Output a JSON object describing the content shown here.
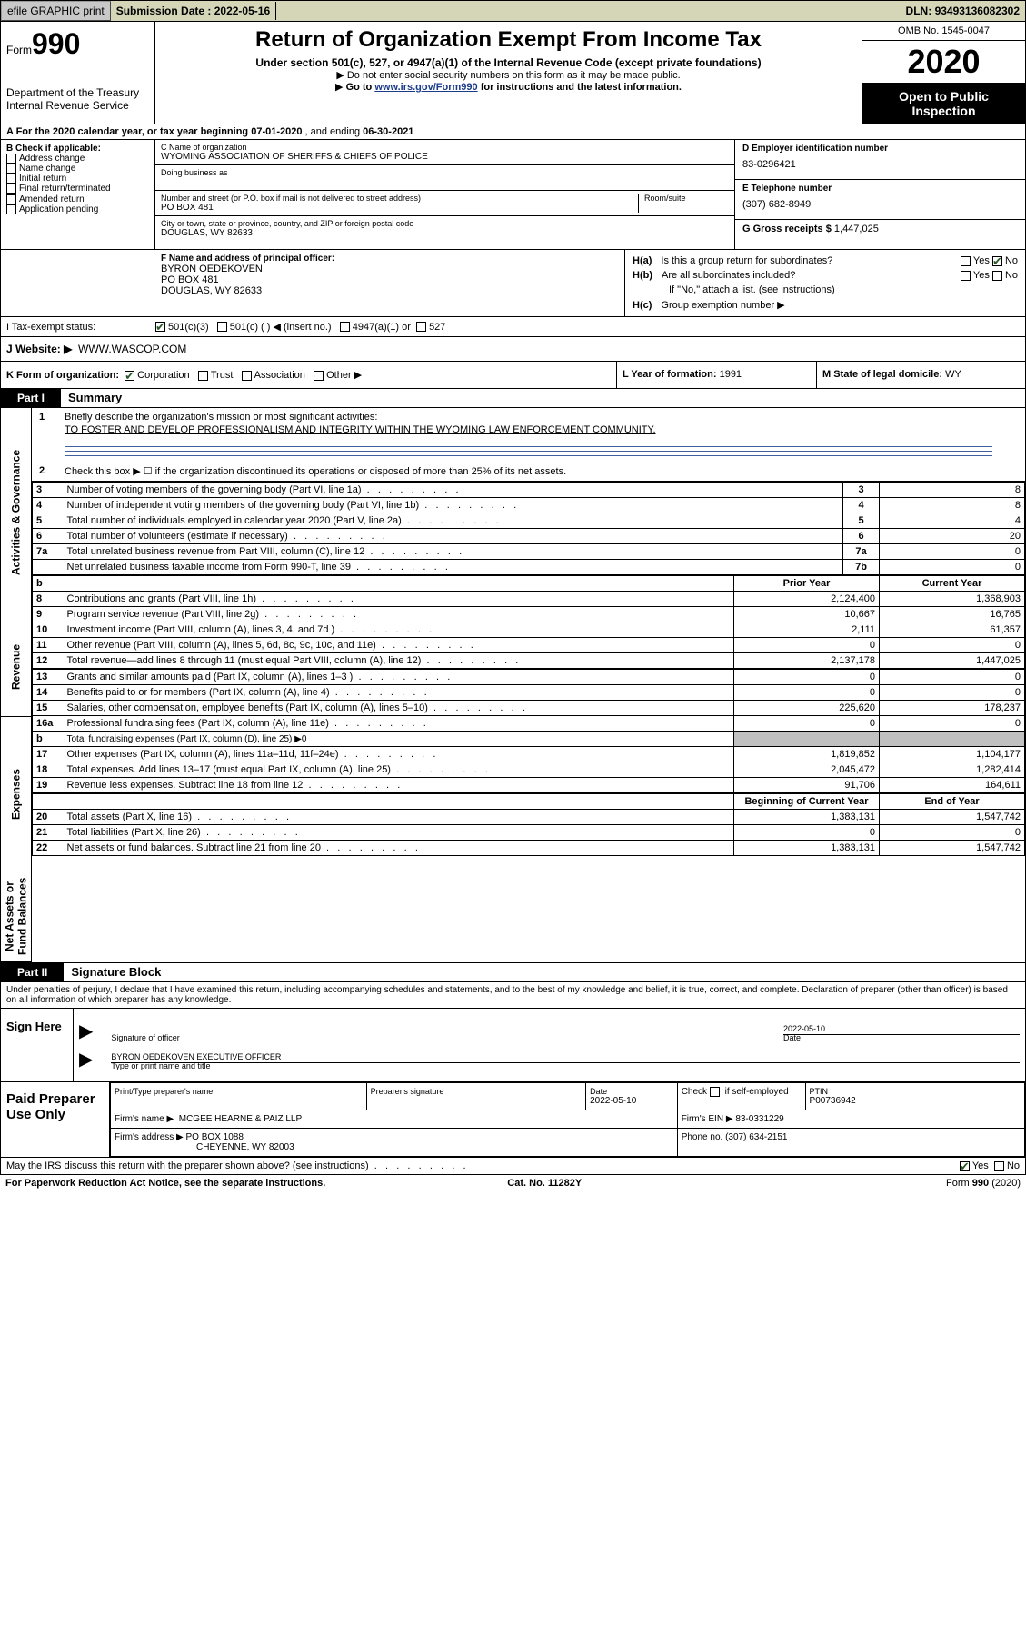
{
  "topbar": {
    "efile": "efile GRAPHIC print",
    "subdate_lbl": "Submission Date :",
    "subdate": "2022-05-16",
    "dln_lbl": "DLN:",
    "dln": "93493136082302"
  },
  "header": {
    "form_word": "Form",
    "form_no": "990",
    "dept1": "Department of the Treasury",
    "dept2": "Internal Revenue Service",
    "title": "Return of Organization Exempt From Income Tax",
    "sub1": "Under section 501(c), 527, or 4947(a)(1) of the Internal Revenue Code (except private foundations)",
    "sub2": "Do not enter social security numbers on this form as it may be made public.",
    "sub3a": "Go to ",
    "sub3link": "www.irs.gov/Form990",
    "sub3b": " for instructions and the latest information.",
    "omb": "OMB No. 1545-0047",
    "year": "2020",
    "opi": "Open to Public Inspection"
  },
  "lineA": {
    "text_a": "A For the 2020 calendar year, or tax year beginning ",
    "begin": "07-01-2020",
    "text_b": " , and ending ",
    "end": "06-30-2021"
  },
  "boxB": {
    "hdr": "B Check if applicable:",
    "o1": "Address change",
    "o2": "Name change",
    "o3": "Initial return",
    "o4": "Final return/terminated",
    "o5": "Amended return",
    "o6": "Application pending"
  },
  "boxC": {
    "name_lbl": "C Name of organization",
    "name": "WYOMING ASSOCIATION OF SHERIFFS & CHIEFS OF POLICE",
    "dba_lbl": "Doing business as",
    "street_lbl": "Number and street (or P.O. box if mail is not delivered to street address)",
    "room_lbl": "Room/suite",
    "street": "PO BOX 481",
    "city_lbl": "City or town, state or province, country, and ZIP or foreign postal code",
    "city": "DOUGLAS, WY  82633"
  },
  "boxD": {
    "lbl": "D Employer identification number",
    "val": "83-0296421"
  },
  "boxE": {
    "lbl": "E Telephone number",
    "val": "(307) 682-8949"
  },
  "boxG": {
    "lbl": "G Gross receipts $",
    "val": "1,447,025"
  },
  "boxF": {
    "lbl": "F Name and address of principal officer:",
    "l1": "BYRON OEDEKOVEN",
    "l2": "PO BOX 481",
    "l3": "DOUGLAS, WY  82633"
  },
  "boxH": {
    "ha": "H(a)",
    "ha_txt": "Is this a group return for subordinates?",
    "hb": "H(b)",
    "hb_txt": "Are all subordinates included?",
    "hb_note": "If \"No,\" attach a list. (see instructions)",
    "hc": "H(c)",
    "hc_txt": "Group exemption number ▶",
    "yes": "Yes",
    "no": "No"
  },
  "taxrow": {
    "lead": "I  Tax-exempt status:",
    "o1": "501(c)(3)",
    "o2": "501(c) (   ) ◀ (insert no.)",
    "o3": "4947(a)(1) or",
    "o4": "527"
  },
  "rowJ": {
    "lbl": "J  Website: ▶",
    "val": "WWW.WASCOP.COM"
  },
  "rowK": {
    "lbl": "K Form of organization:",
    "o1": "Corporation",
    "o2": "Trust",
    "o3": "Association",
    "o4": "Other ▶"
  },
  "rowL": {
    "lbl": "L Year of formation:",
    "val": "1991"
  },
  "rowM": {
    "lbl": "M State of legal domicile:",
    "val": "WY"
  },
  "parts": {
    "p1": "Part I",
    "p1_title": "Summary",
    "p2": "Part II",
    "p2_title": "Signature Block"
  },
  "sidebar": {
    "s1": "Activities & Governance",
    "s2": "Revenue",
    "s3": "Expenses",
    "s4": "Net Assets or Fund Balances"
  },
  "summary": {
    "l1_lbl": "Briefly describe the organization's mission or most significant activities:",
    "l1_val": "TO FOSTER AND DEVELOP PROFESSIONALISM AND INTEGRITY WITHIN THE WYOMING LAW ENFORCEMENT COMMUNITY.",
    "l2": "Check this box ▶ ☐  if the organization discontinued its operations or disposed of more than 25% of its net assets.",
    "rows37": [
      {
        "n": "3",
        "d": "Number of voting members of the governing body (Part VI, line 1a)",
        "k": "3",
        "v": "8"
      },
      {
        "n": "4",
        "d": "Number of independent voting members of the governing body (Part VI, line 1b)",
        "k": "4",
        "v": "8"
      },
      {
        "n": "5",
        "d": "Total number of individuals employed in calendar year 2020 (Part V, line 2a)",
        "k": "5",
        "v": "4"
      },
      {
        "n": "6",
        "d": "Total number of volunteers (estimate if necessary)",
        "k": "6",
        "v": "20"
      },
      {
        "n": "7a",
        "d": "Total unrelated business revenue from Part VIII, column (C), line 12",
        "k": "7a",
        "v": "0"
      },
      {
        "n": "",
        "d": "Net unrelated business taxable income from Form 990-T, line 39",
        "k": "7b",
        "v": "0"
      }
    ],
    "hdr_b": "b",
    "hdr_prior": "Prior Year",
    "hdr_curr": "Current Year",
    "rev": [
      {
        "n": "8",
        "d": "Contributions and grants (Part VIII, line 1h)",
        "p": "2,124,400",
        "c": "1,368,903"
      },
      {
        "n": "9",
        "d": "Program service revenue (Part VIII, line 2g)",
        "p": "10,667",
        "c": "16,765"
      },
      {
        "n": "10",
        "d": "Investment income (Part VIII, column (A), lines 3, 4, and 7d )",
        "p": "2,111",
        "c": "61,357"
      },
      {
        "n": "11",
        "d": "Other revenue (Part VIII, column (A), lines 5, 6d, 8c, 9c, 10c, and 11e)",
        "p": "0",
        "c": "0"
      },
      {
        "n": "12",
        "d": "Total revenue—add lines 8 through 11 (must equal Part VIII, column (A), line 12)",
        "p": "2,137,178",
        "c": "1,447,025"
      }
    ],
    "exp": [
      {
        "n": "13",
        "d": "Grants and similar amounts paid (Part IX, column (A), lines 1–3 )",
        "p": "0",
        "c": "0"
      },
      {
        "n": "14",
        "d": "Benefits paid to or for members (Part IX, column (A), line 4)",
        "p": "0",
        "c": "0"
      },
      {
        "n": "15",
        "d": "Salaries, other compensation, employee benefits (Part IX, column (A), lines 5–10)",
        "p": "225,620",
        "c": "178,237"
      },
      {
        "n": "16a",
        "d": "Professional fundraising fees (Part IX, column (A), line 11e)",
        "p": "0",
        "c": "0"
      },
      {
        "n": "b",
        "d": "Total fundraising expenses (Part IX, column (D), line 25) ▶0",
        "p": "grey",
        "c": "grey"
      },
      {
        "n": "17",
        "d": "Other expenses (Part IX, column (A), lines 11a–11d, 11f–24e)",
        "p": "1,819,852",
        "c": "1,104,177"
      },
      {
        "n": "18",
        "d": "Total expenses. Add lines 13–17 (must equal Part IX, column (A), line 25)",
        "p": "2,045,472",
        "c": "1,282,414"
      },
      {
        "n": "19",
        "d": "Revenue less expenses. Subtract line 18 from line 12",
        "p": "91,706",
        "c": "164,611"
      }
    ],
    "hdr_boy": "Beginning of Current Year",
    "hdr_eoy": "End of Year",
    "net": [
      {
        "n": "20",
        "d": "Total assets (Part X, line 16)",
        "p": "1,383,131",
        "c": "1,547,742"
      },
      {
        "n": "21",
        "d": "Total liabilities (Part X, line 26)",
        "p": "0",
        "c": "0"
      },
      {
        "n": "22",
        "d": "Net assets or fund balances. Subtract line 21 from line 20",
        "p": "1,383,131",
        "c": "1,547,742"
      }
    ]
  },
  "perjury": "Under penalties of perjury, I declare that I have examined this return, including accompanying schedules and statements, and to the best of my knowledge and belief, it is true, correct, and complete. Declaration of preparer (other than officer) is based on all information of which preparer has any knowledge.",
  "sign": {
    "here": "Sign Here",
    "sig_lbl": "Signature of officer",
    "date_val": "2022-05-10",
    "date_lbl": "Date",
    "name_val": "BYRON OEDEKOVEN  EXECUTIVE OFFICER",
    "name_lbl": "Type or print name and title"
  },
  "prep": {
    "left": "Paid Preparer Use Only",
    "c1": "Print/Type preparer's name",
    "c2": "Preparer's signature",
    "c3_lbl": "Date",
    "c3_val": "2022-05-10",
    "c4_a": "Check",
    "c4_b": "if self-employed",
    "c5_lbl": "PTIN",
    "c5_val": "P00736942",
    "firm_lbl": "Firm's name   ▶",
    "firm_val": "MCGEE HEARNE & PAIZ LLP",
    "ein_lbl": "Firm's EIN ▶",
    "ein_val": "83-0331229",
    "addr_lbl": "Firm's address ▶",
    "addr1": "PO BOX 1088",
    "addr2": "CHEYENNE, WY  82003",
    "phone_lbl": "Phone no.",
    "phone_val": "(307) 634-2151"
  },
  "discuss": {
    "q": "May the IRS discuss this return with the preparer shown above? (see instructions)",
    "yes": "Yes",
    "no": "No"
  },
  "footer": {
    "l": "For Paperwork Reduction Act Notice, see the separate instructions.",
    "m": "Cat. No. 11282Y",
    "r": "Form 990 (2020)"
  }
}
